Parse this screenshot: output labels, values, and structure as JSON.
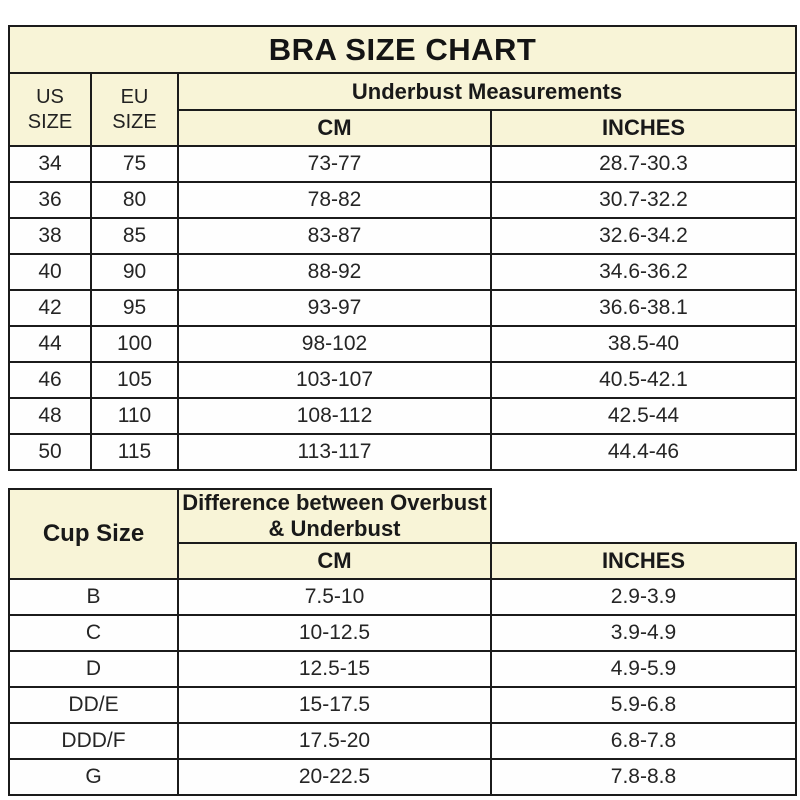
{
  "colors": {
    "header_bg": "#f8f4d7",
    "row_bg": "#fefefe",
    "border": "#1b1b1b",
    "text": "#1f1f1f"
  },
  "chart_data": [
    {
      "type": "table",
      "title": "BRA SIZE CHART",
      "header": {
        "col1": "US SIZE",
        "col2": "EU SIZE",
        "group": "Underbust Measurements",
        "sub1": "CM",
        "sub2": "INCHES"
      },
      "rows": [
        [
          "34",
          "75",
          "73-77",
          "28.7-30.3"
        ],
        [
          "36",
          "80",
          "78-82",
          "30.7-32.2"
        ],
        [
          "38",
          "85",
          "83-87",
          "32.6-34.2"
        ],
        [
          "40",
          "90",
          "88-92",
          "34.6-36.2"
        ],
        [
          "42",
          "95",
          "93-97",
          "36.6-38.1"
        ],
        [
          "44",
          "100",
          "98-102",
          "38.5-40"
        ],
        [
          "46",
          "105",
          "103-107",
          "40.5-42.1"
        ],
        [
          "48",
          "110",
          "108-112",
          "42.5-44"
        ],
        [
          "50",
          "115",
          "113-117",
          "44.4-46"
        ]
      ]
    },
    {
      "type": "table",
      "header": {
        "col1": "Cup Size",
        "group": "Difference between Overbust & Underbust",
        "sub1": "CM",
        "sub2": "INCHES"
      },
      "rows": [
        [
          "B",
          "7.5-10",
          "2.9-3.9"
        ],
        [
          "C",
          "10-12.5",
          "3.9-4.9"
        ],
        [
          "D",
          "12.5-15",
          "4.9-5.9"
        ],
        [
          "DD/E",
          "15-17.5",
          "5.9-6.8"
        ],
        [
          "DDD/F",
          "17.5-20",
          "6.8-7.8"
        ],
        [
          "G",
          "20-22.5",
          "7.8-8.8"
        ]
      ]
    }
  ]
}
